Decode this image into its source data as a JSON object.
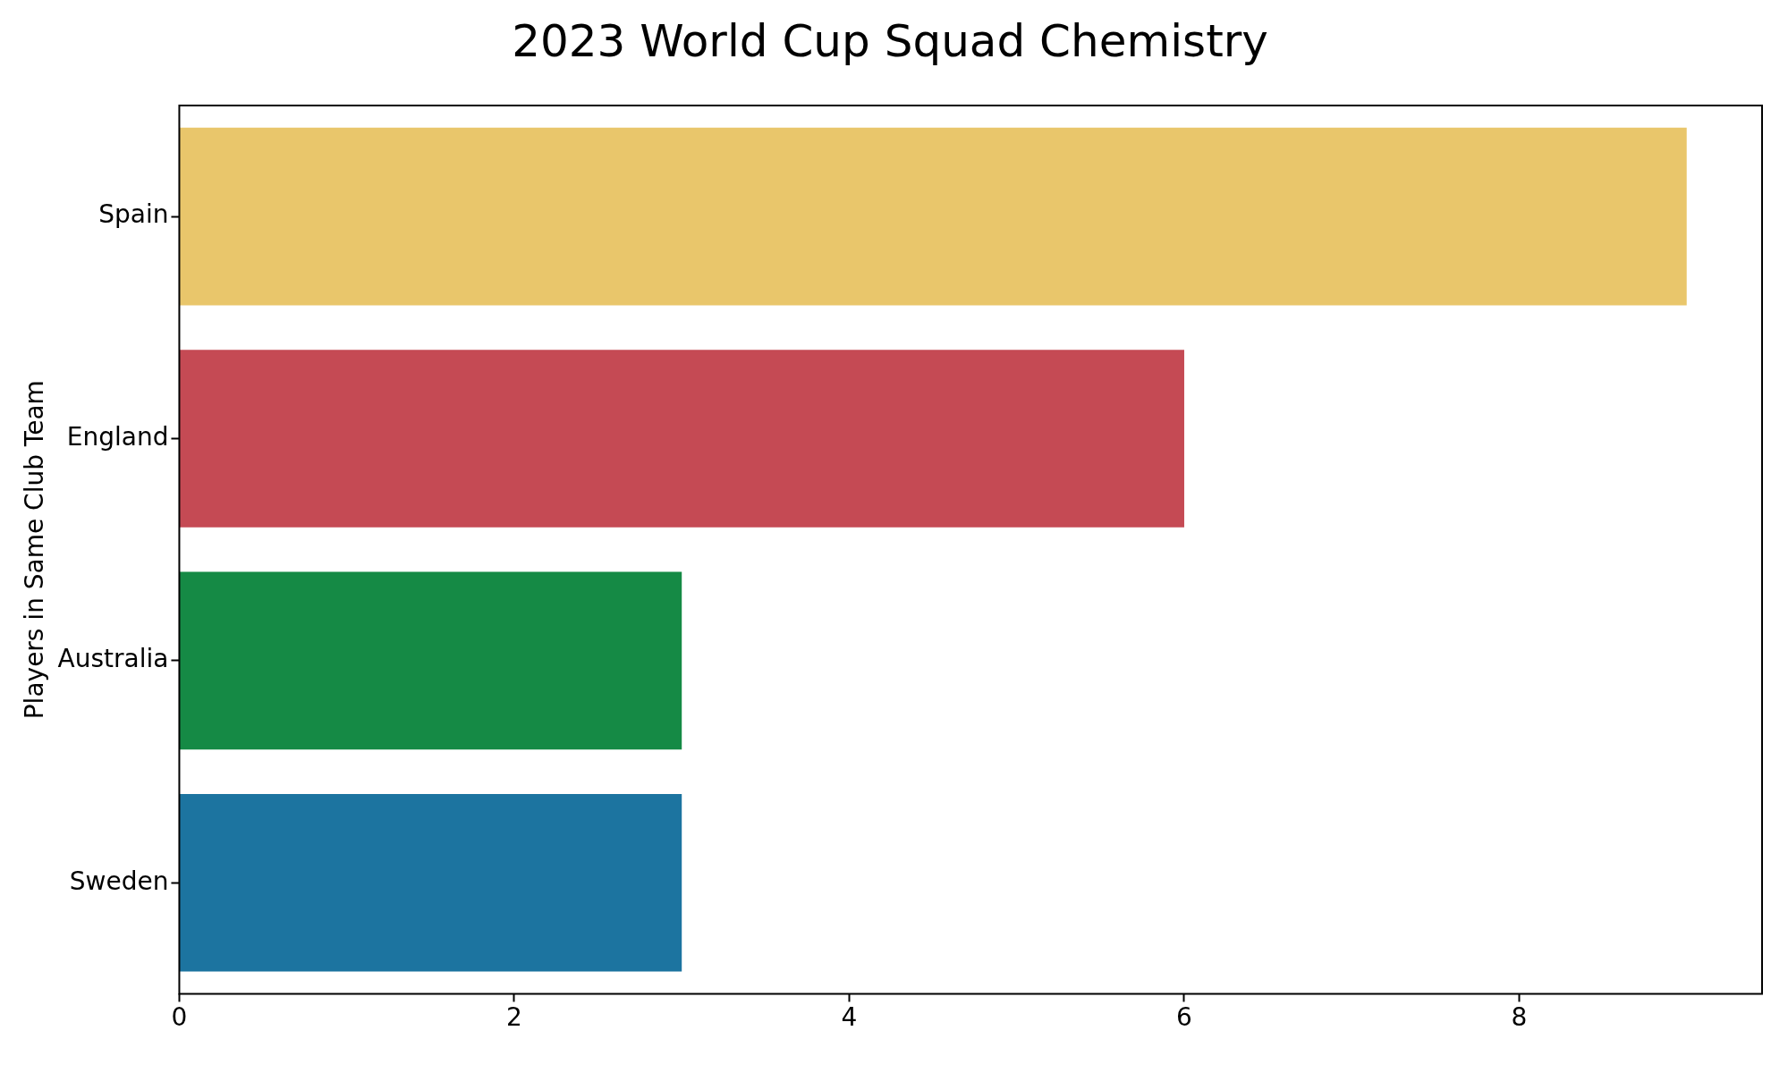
{
  "chart_data": {
    "type": "bar",
    "orientation": "horizontal",
    "title": "2023 World Cup Squad Chemistry",
    "ylabel": "Players in Same Club Team",
    "categories": [
      "Spain",
      "England",
      "Australia",
      "Sweden"
    ],
    "values": [
      9,
      6,
      3,
      3
    ],
    "colors": [
      "#e9c66b",
      "#c54a54",
      "#158a45",
      "#1c74a0"
    ],
    "xlim": [
      0,
      9.45
    ],
    "xticks": [
      0,
      2,
      4,
      6,
      8
    ],
    "grid": false,
    "legend": false
  }
}
